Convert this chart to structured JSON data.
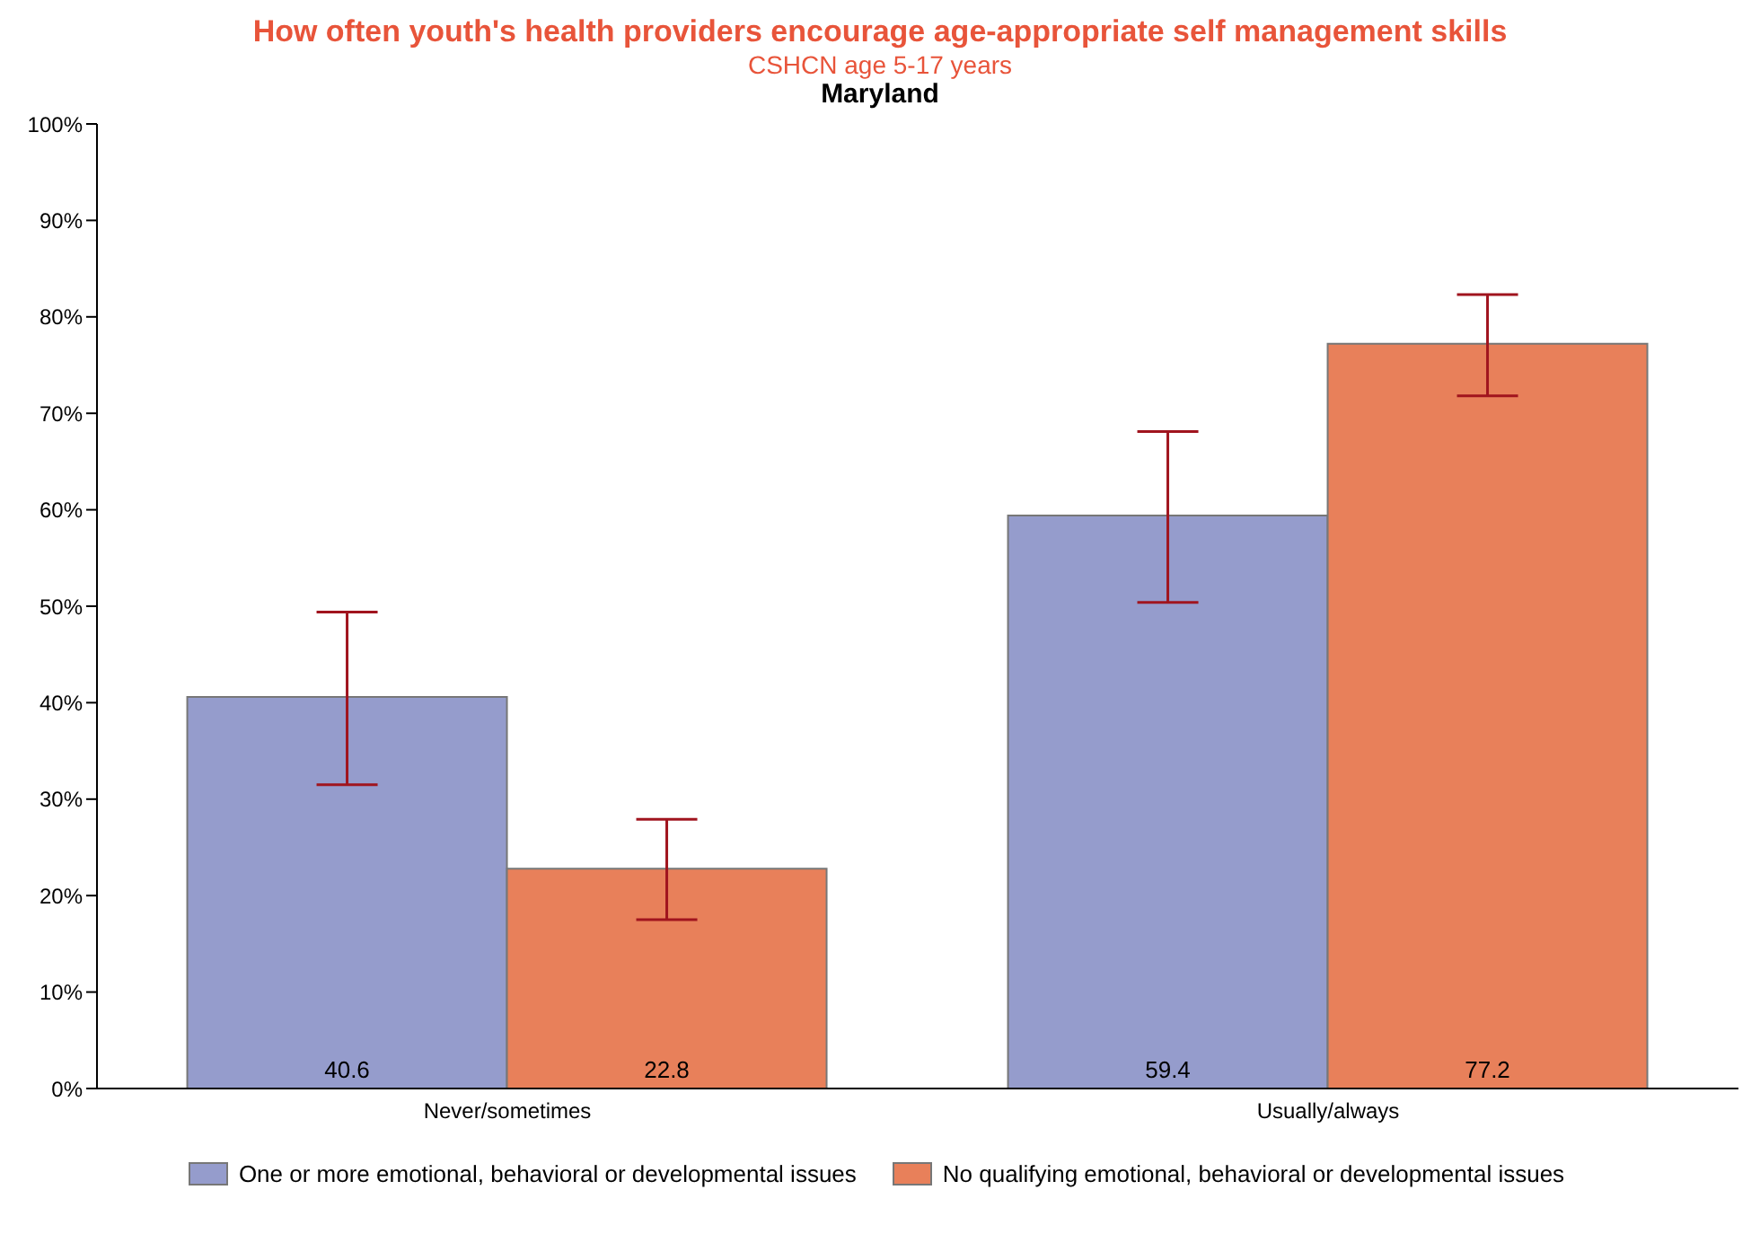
{
  "chart_data": {
    "type": "bar",
    "title": "How often youth's health providers encourage age-appropriate self management skills",
    "subtitle": "CSHCN age 5-17 years",
    "annotations": [
      "Maryland"
    ],
    "categories": [
      "Never/sometimes",
      "Usually/always"
    ],
    "series": [
      {
        "name": "One or more emotional, behavioral or developmental issues",
        "color": "#959ccc",
        "values": [
          40.6,
          59.4
        ],
        "errors": [
          [
            31.5,
            49.4
          ],
          [
            50.4,
            68.1
          ]
        ]
      },
      {
        "name": "No qualifying emotional, behavioral or developmental issues",
        "color": "#e8805a",
        "values": [
          22.8,
          77.2
        ],
        "errors": [
          [
            17.5,
            27.9
          ],
          [
            71.8,
            82.3
          ]
        ]
      }
    ],
    "ylim": [
      0,
      100
    ],
    "yticks": [
      {
        "value": 0,
        "label": "0%"
      },
      {
        "value": 10,
        "label": "10%"
      },
      {
        "value": 20,
        "label": "20%"
      },
      {
        "value": 30,
        "label": "30%"
      },
      {
        "value": 40,
        "label": "40%"
      },
      {
        "value": 50,
        "label": "50%"
      },
      {
        "value": 60,
        "label": "60%"
      },
      {
        "value": 70,
        "label": "70%"
      },
      {
        "value": 80,
        "label": "80%"
      },
      {
        "value": 90,
        "label": "90%"
      },
      {
        "value": 100,
        "label": "100%"
      }
    ],
    "data_labels": true,
    "grid": false,
    "legend": "bottom"
  }
}
